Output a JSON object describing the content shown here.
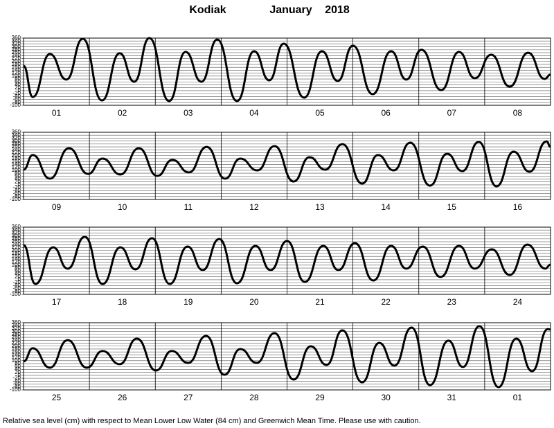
{
  "header": {
    "title": "Kodiak",
    "month": "January",
    "year": "2018"
  },
  "footer": "Relative sea level (cm) with respect to Mean Lower Low Water (84 cm) and Greenwich Mean Time. Please use with caution.",
  "chart_data": [
    {
      "type": "line",
      "color": "#000000",
      "grid": true,
      "categories": [
        "01",
        "02",
        "03",
        "04",
        "05",
        "06",
        "07",
        "08"
      ],
      "x": [
        0,
        0.14,
        0.4,
        0.65,
        0.9,
        1.19,
        1.46,
        1.68,
        1.91,
        2.21,
        2.46,
        2.7,
        2.94,
        3.24,
        3.5,
        3.73,
        3.95,
        4.26,
        4.53,
        4.77,
        5.0,
        5.3,
        5.58,
        5.81,
        6.04,
        6.34,
        6.61,
        6.85,
        7.1,
        7.38,
        7.66,
        7.91,
        8.0
      ],
      "values": [
        170,
        -43,
        251,
        76,
        355,
        -67,
        256,
        61,
        360,
        -71,
        265,
        61,
        350,
        -71,
        270,
        71,
        322,
        -48,
        270,
        66,
        308,
        -24,
        270,
        76,
        280,
        4,
        265,
        85,
        246,
        28,
        260,
        80,
        110
      ],
      "xlim": [
        0,
        8
      ],
      "ylim": [
        -100,
        360
      ],
      "yticks": [
        -100,
        -80,
        -60,
        -40,
        -20,
        0,
        20,
        40,
        60,
        80,
        100,
        120,
        140,
        160,
        180,
        200,
        220,
        240,
        260,
        280,
        300,
        320,
        340,
        360
      ]
    },
    {
      "type": "line",
      "color": "#000000",
      "grid": true,
      "categories": [
        "09",
        "10",
        "11",
        "12",
        "13",
        "14",
        "15",
        "16"
      ],
      "x": [
        0,
        0.14,
        0.4,
        0.69,
        0.98,
        1.2,
        1.47,
        1.75,
        2.03,
        2.26,
        2.51,
        2.78,
        3.06,
        3.29,
        3.55,
        3.81,
        4.1,
        4.34,
        4.58,
        4.84,
        5.14,
        5.38,
        5.62,
        5.87,
        6.17,
        6.43,
        6.66,
        6.91,
        7.18,
        7.44,
        7.68,
        7.94,
        8.0
      ],
      "values": [
        104,
        204,
        42,
        251,
        75,
        180,
        71,
        251,
        61,
        171,
        85,
        260,
        42,
        180,
        99,
        265,
        23,
        189,
        104,
        279,
        9,
        204,
        99,
        289,
        -5,
        213,
        94,
        294,
        -10,
        227,
        90,
        298,
        260
      ],
      "xlim": [
        0,
        8
      ],
      "ylim": [
        -100,
        360
      ],
      "yticks": [
        -100,
        -80,
        -60,
        -40,
        -20,
        0,
        20,
        40,
        60,
        80,
        100,
        120,
        140,
        160,
        180,
        200,
        220,
        240,
        260,
        280,
        300,
        320,
        340,
        360
      ]
    },
    {
      "type": "line",
      "color": "#000000",
      "grid": true,
      "categories": [
        "17",
        "18",
        "19",
        "20",
        "21",
        "22",
        "23",
        "24"
      ],
      "x": [
        0,
        0.18,
        0.45,
        0.67,
        0.93,
        1.2,
        1.47,
        1.7,
        1.95,
        2.22,
        2.49,
        2.72,
        2.97,
        3.24,
        3.52,
        3.75,
        4.0,
        4.27,
        4.55,
        4.78,
        5.03,
        5.31,
        5.58,
        5.81,
        6.06,
        6.33,
        6.61,
        6.85,
        7.11,
        7.38,
        7.65,
        7.92,
        8.0
      ],
      "values": [
        237,
        -29,
        222,
        76,
        294,
        -29,
        222,
        71,
        284,
        -29,
        227,
        66,
        279,
        -24,
        232,
        66,
        265,
        -15,
        232,
        66,
        251,
        -5,
        232,
        76,
        227,
        19,
        232,
        76,
        208,
        33,
        241,
        76,
        104
      ],
      "xlim": [
        0,
        8
      ],
      "ylim": [
        -100,
        360
      ],
      "yticks": [
        -100,
        -80,
        -60,
        -40,
        -20,
        0,
        20,
        40,
        60,
        80,
        100,
        120,
        140,
        160,
        180,
        200,
        220,
        240,
        260,
        280,
        300,
        320,
        340,
        360
      ]
    },
    {
      "type": "line",
      "color": "#000000",
      "grid": true,
      "categories": [
        "25",
        "26",
        "27",
        "28",
        "29",
        "30",
        "31",
        "01"
      ],
      "x": [
        0,
        0.14,
        0.4,
        0.67,
        0.96,
        1.2,
        1.46,
        1.72,
        2.01,
        2.25,
        2.5,
        2.77,
        3.05,
        3.29,
        3.54,
        3.81,
        4.1,
        4.36,
        4.6,
        4.84,
        5.14,
        5.4,
        5.63,
        5.89,
        6.17,
        6.45,
        6.67,
        6.92,
        7.21,
        7.48,
        7.72,
        7.96,
        8.0
      ],
      "values": [
        95,
        185,
        52,
        241,
        52,
        166,
        76,
        251,
        33,
        166,
        85,
        270,
        4,
        180,
        85,
        289,
        -29,
        199,
        71,
        308,
        -48,
        222,
        66,
        327,
        -67,
        237,
        57,
        336,
        -81,
        251,
        28,
        317,
        313
      ],
      "xlim": [
        0,
        8
      ],
      "ylim": [
        -100,
        360
      ],
      "yticks": [
        -100,
        -80,
        -60,
        -40,
        -20,
        0,
        20,
        40,
        60,
        80,
        100,
        120,
        140,
        160,
        180,
        200,
        220,
        240,
        260,
        280,
        300,
        320,
        340,
        360
      ]
    }
  ]
}
